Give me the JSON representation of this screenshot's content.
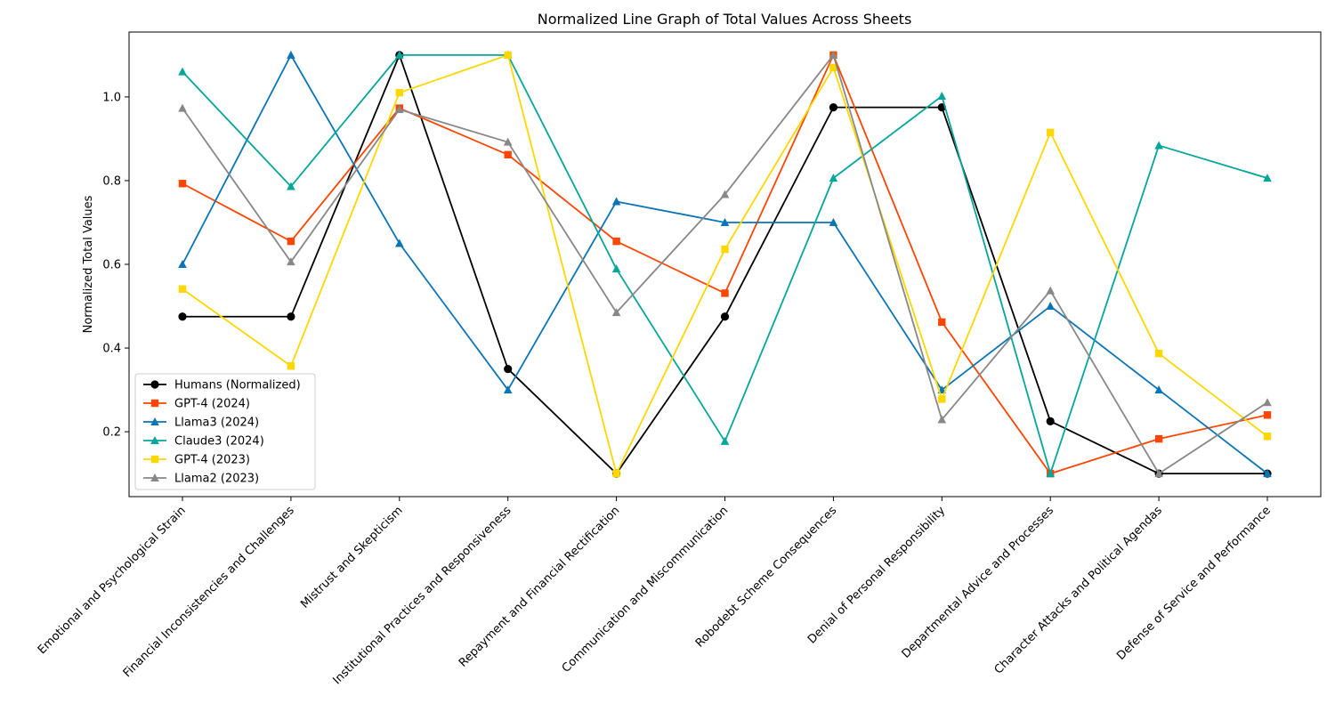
{
  "chart_data": {
    "type": "line",
    "title": "Normalized Line Graph of Total Values Across Sheets",
    "xlabel": "",
    "ylabel": "Normalized Total Values",
    "ylim": [
      0.045,
      1.155
    ],
    "yticks": [
      "0.2",
      "0.4",
      "0.6",
      "0.8",
      "1.0"
    ],
    "grid": false,
    "legend_position": "lower-left",
    "categories": [
      "Emotional and Psychological Strain",
      "Financial Inconsistencies and Challenges",
      "Mistrust and Skepticism",
      "Institutional Practices and Responsiveness",
      "Repayment and Financial Rectification",
      "Communication and Miscommunication",
      "Robodebt Scheme Consequences",
      "Denial of Personal Responsibility",
      "Departmental Advice and Processes",
      "Character Attacks and Political Agendas",
      "Defense of Service and Performance"
    ],
    "series": [
      {
        "name": "Humans (Normalized)",
        "color": "#000000",
        "marker": "circle",
        "values": [
          0.475,
          0.475,
          1.1,
          0.35,
          0.1,
          0.475,
          0.975,
          0.975,
          0.225,
          0.1,
          0.1
        ]
      },
      {
        "name": "GPT-4 (2024)",
        "color": "#ff4500",
        "marker": "square",
        "values": [
          0.793,
          0.655,
          0.973,
          0.862,
          0.655,
          0.531,
          1.1,
          0.462,
          0.1,
          0.183,
          0.24
        ]
      },
      {
        "name": "Llama3 (2024)",
        "color": "#0a75b5",
        "marker": "triangle",
        "values": [
          0.6,
          1.1,
          0.65,
          0.3,
          0.75,
          0.7,
          0.7,
          0.3,
          0.5,
          0.3,
          0.1
        ]
      },
      {
        "name": "Claude3 (2024)",
        "color": "#04a69a",
        "marker": "triangle",
        "values": [
          1.06,
          0.786,
          1.1,
          1.1,
          0.589,
          0.177,
          0.806,
          1.002,
          0.1,
          0.884,
          0.806
        ]
      },
      {
        "name": "GPT-4 (2023)",
        "color": "#ffd700",
        "marker": "square",
        "values": [
          0.541,
          0.357,
          1.01,
          1.1,
          0.1,
          0.636,
          1.07,
          0.278,
          0.915,
          0.387,
          0.189
        ]
      },
      {
        "name": "Llama2 (2023)",
        "color": "#888888",
        "marker": "triangle",
        "values": [
          0.973,
          0.606,
          0.97,
          0.892,
          0.485,
          0.767,
          1.1,
          0.229,
          0.537,
          0.1,
          0.27
        ]
      }
    ]
  }
}
